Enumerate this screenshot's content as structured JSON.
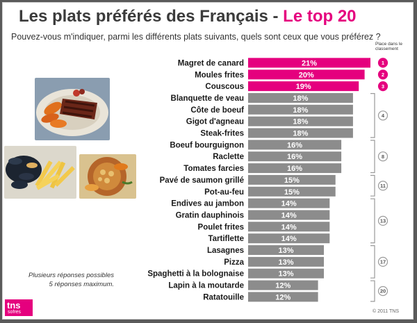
{
  "header": {
    "title_main": "Les plats préférés des Français - ",
    "title_accent": "Le top 20",
    "question": "Pouvez-vous m'indiquer, parmi les différents plats suivants, quels sont ceux que vous préférez ?",
    "rank_header": "Place dans le classement"
  },
  "footer": {
    "note_line1": "Plusieurs réponses possibles",
    "note_line2": "5 réponses maximum.",
    "copyright": "© 2011 TNS",
    "logo_tns": "tns",
    "logo_sofres": "sofres"
  },
  "colors": {
    "highlight": "#e5007e",
    "bar": "#8c8c8c",
    "bracket": "#9a9a9a"
  },
  "chart_data": {
    "type": "bar",
    "orientation": "horizontal",
    "title": "Les plats préférés des Français - Le top 20",
    "unit": "%",
    "xlim": [
      0,
      21
    ],
    "categories": [
      "Magret de canard",
      "Moules frites",
      "Couscous",
      "Blanquette de veau",
      "Côte de boeuf",
      "Gigot d'agneau",
      "Steak-frites",
      "Boeuf bourguignon",
      "Raclette",
      "Tomates farcies",
      "Pavé de saumon grillé",
      "Pot-au-feu",
      "Endives au jambon",
      "Gratin dauphinois",
      "Poulet frites",
      "Tartiflette",
      "Lasagnes",
      "Pizza",
      "Spaghetti à la bolognaise",
      "Lapin à la moutarde",
      "Ratatouille"
    ],
    "values": [
      21,
      20,
      19,
      18,
      18,
      18,
      18,
      16,
      16,
      16,
      15,
      15,
      14,
      14,
      14,
      14,
      13,
      13,
      13,
      12,
      12
    ],
    "value_labels": [
      "21%",
      "20%",
      "19%",
      "18%",
      "18%",
      "18%",
      "18%",
      "16%",
      "16%",
      "16%",
      "15%",
      "15%",
      "14%",
      "14%",
      "14%",
      "14%",
      "13%",
      "13%",
      "13%",
      "12%",
      "12%"
    ],
    "highlight_count": 3,
    "ranks": [
      {
        "label": "1",
        "start": 0,
        "end": 0
      },
      {
        "label": "2",
        "start": 1,
        "end": 1
      },
      {
        "label": "3",
        "start": 2,
        "end": 2
      },
      {
        "label": "4",
        "start": 3,
        "end": 6
      },
      {
        "label": "8",
        "start": 7,
        "end": 9
      },
      {
        "label": "11",
        "start": 10,
        "end": 11
      },
      {
        "label": "13",
        "start": 12,
        "end": 15
      },
      {
        "label": "17",
        "start": 16,
        "end": 18
      },
      {
        "label": "20",
        "start": 19,
        "end": 20
      }
    ]
  }
}
